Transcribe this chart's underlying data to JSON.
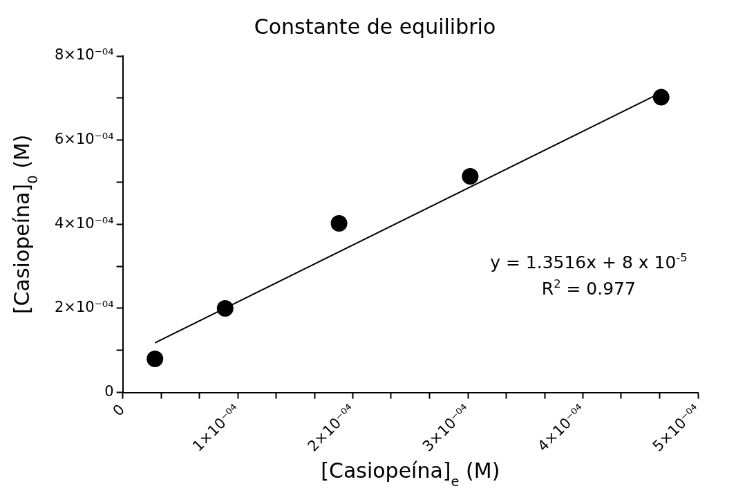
{
  "chart_data": {
    "type": "scatter",
    "title": "Constante de equilibrio",
    "xlabel": "[Casiopeína]$_{e}$ (M)",
    "ylabel": "[Casiopeína]$_{0}$ (M)",
    "series": [
      {
        "color": "#000000",
        "marker": "circle",
        "x": [
          2.8e-05,
          8.9e-05,
          0.000188,
          0.000302,
          0.000468
        ],
        "values": [
          8e-05,
          0.0002,
          0.000402,
          0.000514,
          0.000702
        ]
      },
      {
        "type": "line",
        "color": "#000000",
        "marker": "none",
        "line_style": "solid",
        "x": [
          2.8e-05,
          0.000468
        ],
        "values": [
          0.000118,
          0.000713
        ]
      }
    ],
    "xlim": [
      0,
      0.0005
    ],
    "xticks": [
      {
        "value": 0,
        "label": "0"
      },
      {
        "value": 3.33e-05,
        "label": null
      },
      {
        "value": 6.67e-05,
        "label": null
      },
      {
        "value": 0.0001,
        "label": "1×10⁻⁰⁴"
      },
      {
        "value": 0.0001333,
        "label": null
      },
      {
        "value": 0.0001667,
        "label": null
      },
      {
        "value": 0.0002,
        "label": "2×10⁻⁰⁴"
      },
      {
        "value": 0.0002333,
        "label": null
      },
      {
        "value": 0.0002667,
        "label": null
      },
      {
        "value": 0.0003,
        "label": "3×10⁻⁰⁴"
      },
      {
        "value": 0.0003333,
        "label": null
      },
      {
        "value": 0.0003667,
        "label": null
      },
      {
        "value": 0.0004,
        "label": "4×10⁻⁰⁴"
      },
      {
        "value": 0.0004333,
        "label": null
      },
      {
        "value": 0.0004667,
        "label": null
      },
      {
        "value": 0.0005,
        "label": "5×10⁻⁰⁴"
      }
    ],
    "ylim": [
      0,
      0.0008
    ],
    "yticks": [
      {
        "value": 0,
        "label": "0"
      },
      {
        "value": 0.0001,
        "label": null
      },
      {
        "value": 0.0002,
        "label": "2×10⁻⁰⁴"
      },
      {
        "value": 0.0003,
        "label": null
      },
      {
        "value": 0.0004,
        "label": "4×10⁻⁰⁴"
      },
      {
        "value": 0.0005,
        "label": null
      },
      {
        "value": 0.0006,
        "label": "6×10⁻⁰⁴"
      },
      {
        "value": 0.0007,
        "label": null
      },
      {
        "value": 0.0008,
        "label": "8×10⁻⁰⁴"
      }
    ],
    "grid": false,
    "legend": false,
    "annotations": [
      "y = 1.3516x + 8 x 10$^{-5}$",
      "R$^{2}$ = 0.977"
    ]
  }
}
